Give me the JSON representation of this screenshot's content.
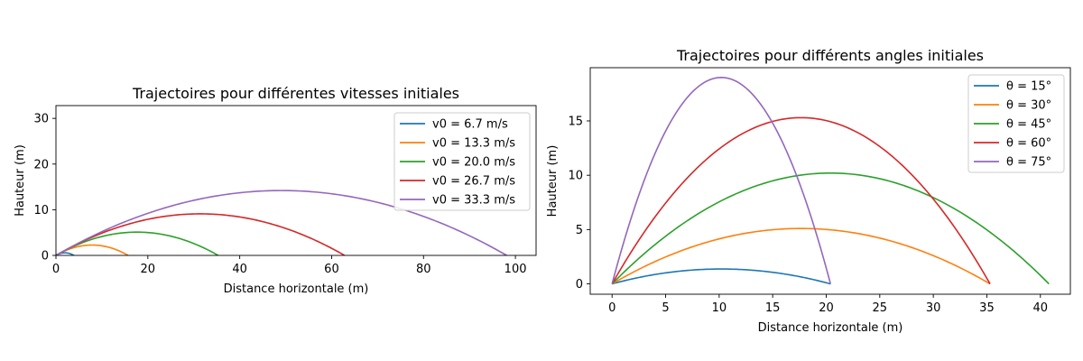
{
  "chart_data": [
    {
      "type": "line",
      "title": "Trajectoires pour différentes vitesses initiales",
      "xlabel": "Distance horizontale (m)",
      "ylabel": "Hauteur (m)",
      "xlim": [
        0,
        104.5
      ],
      "ylim": [
        0,
        32.8
      ],
      "xticks": [
        0,
        20,
        40,
        60,
        80,
        100
      ],
      "yticks": [
        0,
        10,
        20,
        30
      ],
      "grid": false,
      "legend_position": "top-right",
      "series": [
        {
          "name": "v0 = 6.7 m/s",
          "color": "#1f77b4",
          "range": 3.92,
          "max_height": 0.57
        },
        {
          "name": "v0 = 13.3 m/s",
          "color": "#ff7f0e",
          "range": 15.7,
          "max_height": 2.27
        },
        {
          "name": "v0 = 20.0 m/s",
          "color": "#2ca02c",
          "range": 35.3,
          "max_height": 5.1
        },
        {
          "name": "v0 = 26.7 m/s",
          "color": "#d62728",
          "range": 62.8,
          "max_height": 9.1
        },
        {
          "name": "v0 = 33.3 m/s",
          "color": "#9467bd",
          "range": 98.1,
          "max_height": 14.2
        }
      ]
    },
    {
      "type": "line",
      "title": "Trajectoires pour différents angles initiales",
      "xlabel": "Distance horizontale (m)",
      "ylabel": "Hauteur (m)",
      "xlim": [
        -2.04,
        42.8
      ],
      "ylim": [
        -0.95,
        19.9
      ],
      "xticks": [
        0,
        5,
        10,
        15,
        20,
        25,
        30,
        35,
        40
      ],
      "yticks": [
        0,
        5,
        10,
        15
      ],
      "grid": false,
      "legend_position": "top-right",
      "series": [
        {
          "name": "θ = 15°",
          "color": "#1f77b4",
          "range": 20.4,
          "max_height": 1.37
        },
        {
          "name": "θ = 30°",
          "color": "#ff7f0e",
          "range": 35.3,
          "max_height": 5.1
        },
        {
          "name": "θ = 45°",
          "color": "#2ca02c",
          "range": 40.8,
          "max_height": 10.2
        },
        {
          "name": "θ = 60°",
          "color": "#d62728",
          "range": 35.3,
          "max_height": 15.3
        },
        {
          "name": "θ = 75°",
          "color": "#9467bd",
          "range": 20.4,
          "max_height": 19.0
        }
      ]
    }
  ]
}
